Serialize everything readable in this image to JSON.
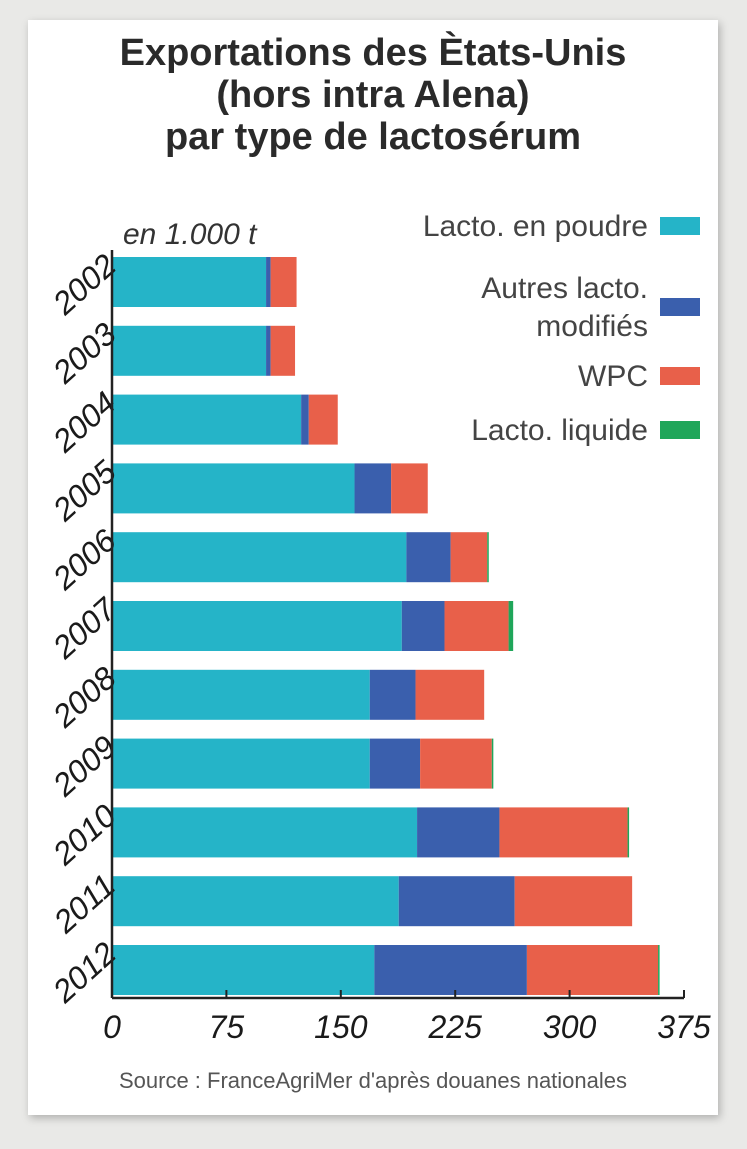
{
  "title_lines": [
    "Exportations des Ètats-Unis",
    "(hors intra Alena)",
    "par type de lactosérum"
  ],
  "unit_label": "en 1.000 t",
  "source": "Source : FranceAgriMer d'après douanes nationales",
  "chart_data": {
    "type": "bar",
    "orientation": "horizontal",
    "stacked": true,
    "title": "Exportations des Ètats-Unis (hors intra Alena) par type de lactosérum",
    "xlabel": "",
    "ylabel": "",
    "unit": "en 1.000 t",
    "xlim": [
      0,
      375
    ],
    "xticks": [
      0,
      75,
      150,
      225,
      300,
      375
    ],
    "grid": false,
    "legend_position": "top-right",
    "categories": [
      "2002",
      "2003",
      "2004",
      "2005",
      "2006",
      "2007",
      "2008",
      "2009",
      "2010",
      "2011",
      "2012"
    ],
    "series": [
      {
        "name": "Lacto. en poudre",
        "color": "#25b4c8",
        "values": [
          101,
          101,
          124,
          159,
          193,
          190,
          169,
          169,
          200,
          188,
          172
        ]
      },
      {
        "name": "Autres lacto. modifiés",
        "color": "#3a5fad",
        "values": [
          3,
          3,
          5,
          24,
          29,
          28,
          30,
          33,
          54,
          76,
          100
        ]
      },
      {
        "name": "WPC",
        "color": "#e8604a",
        "values": [
          17,
          16,
          19,
          24,
          24,
          42,
          45,
          47,
          84,
          77,
          86
        ]
      },
      {
        "name": "Lacto. liquide",
        "color": "#1fa65a",
        "values": [
          0,
          0,
          0,
          0,
          1,
          3,
          0,
          1,
          1,
          0,
          1
        ]
      }
    ]
  }
}
